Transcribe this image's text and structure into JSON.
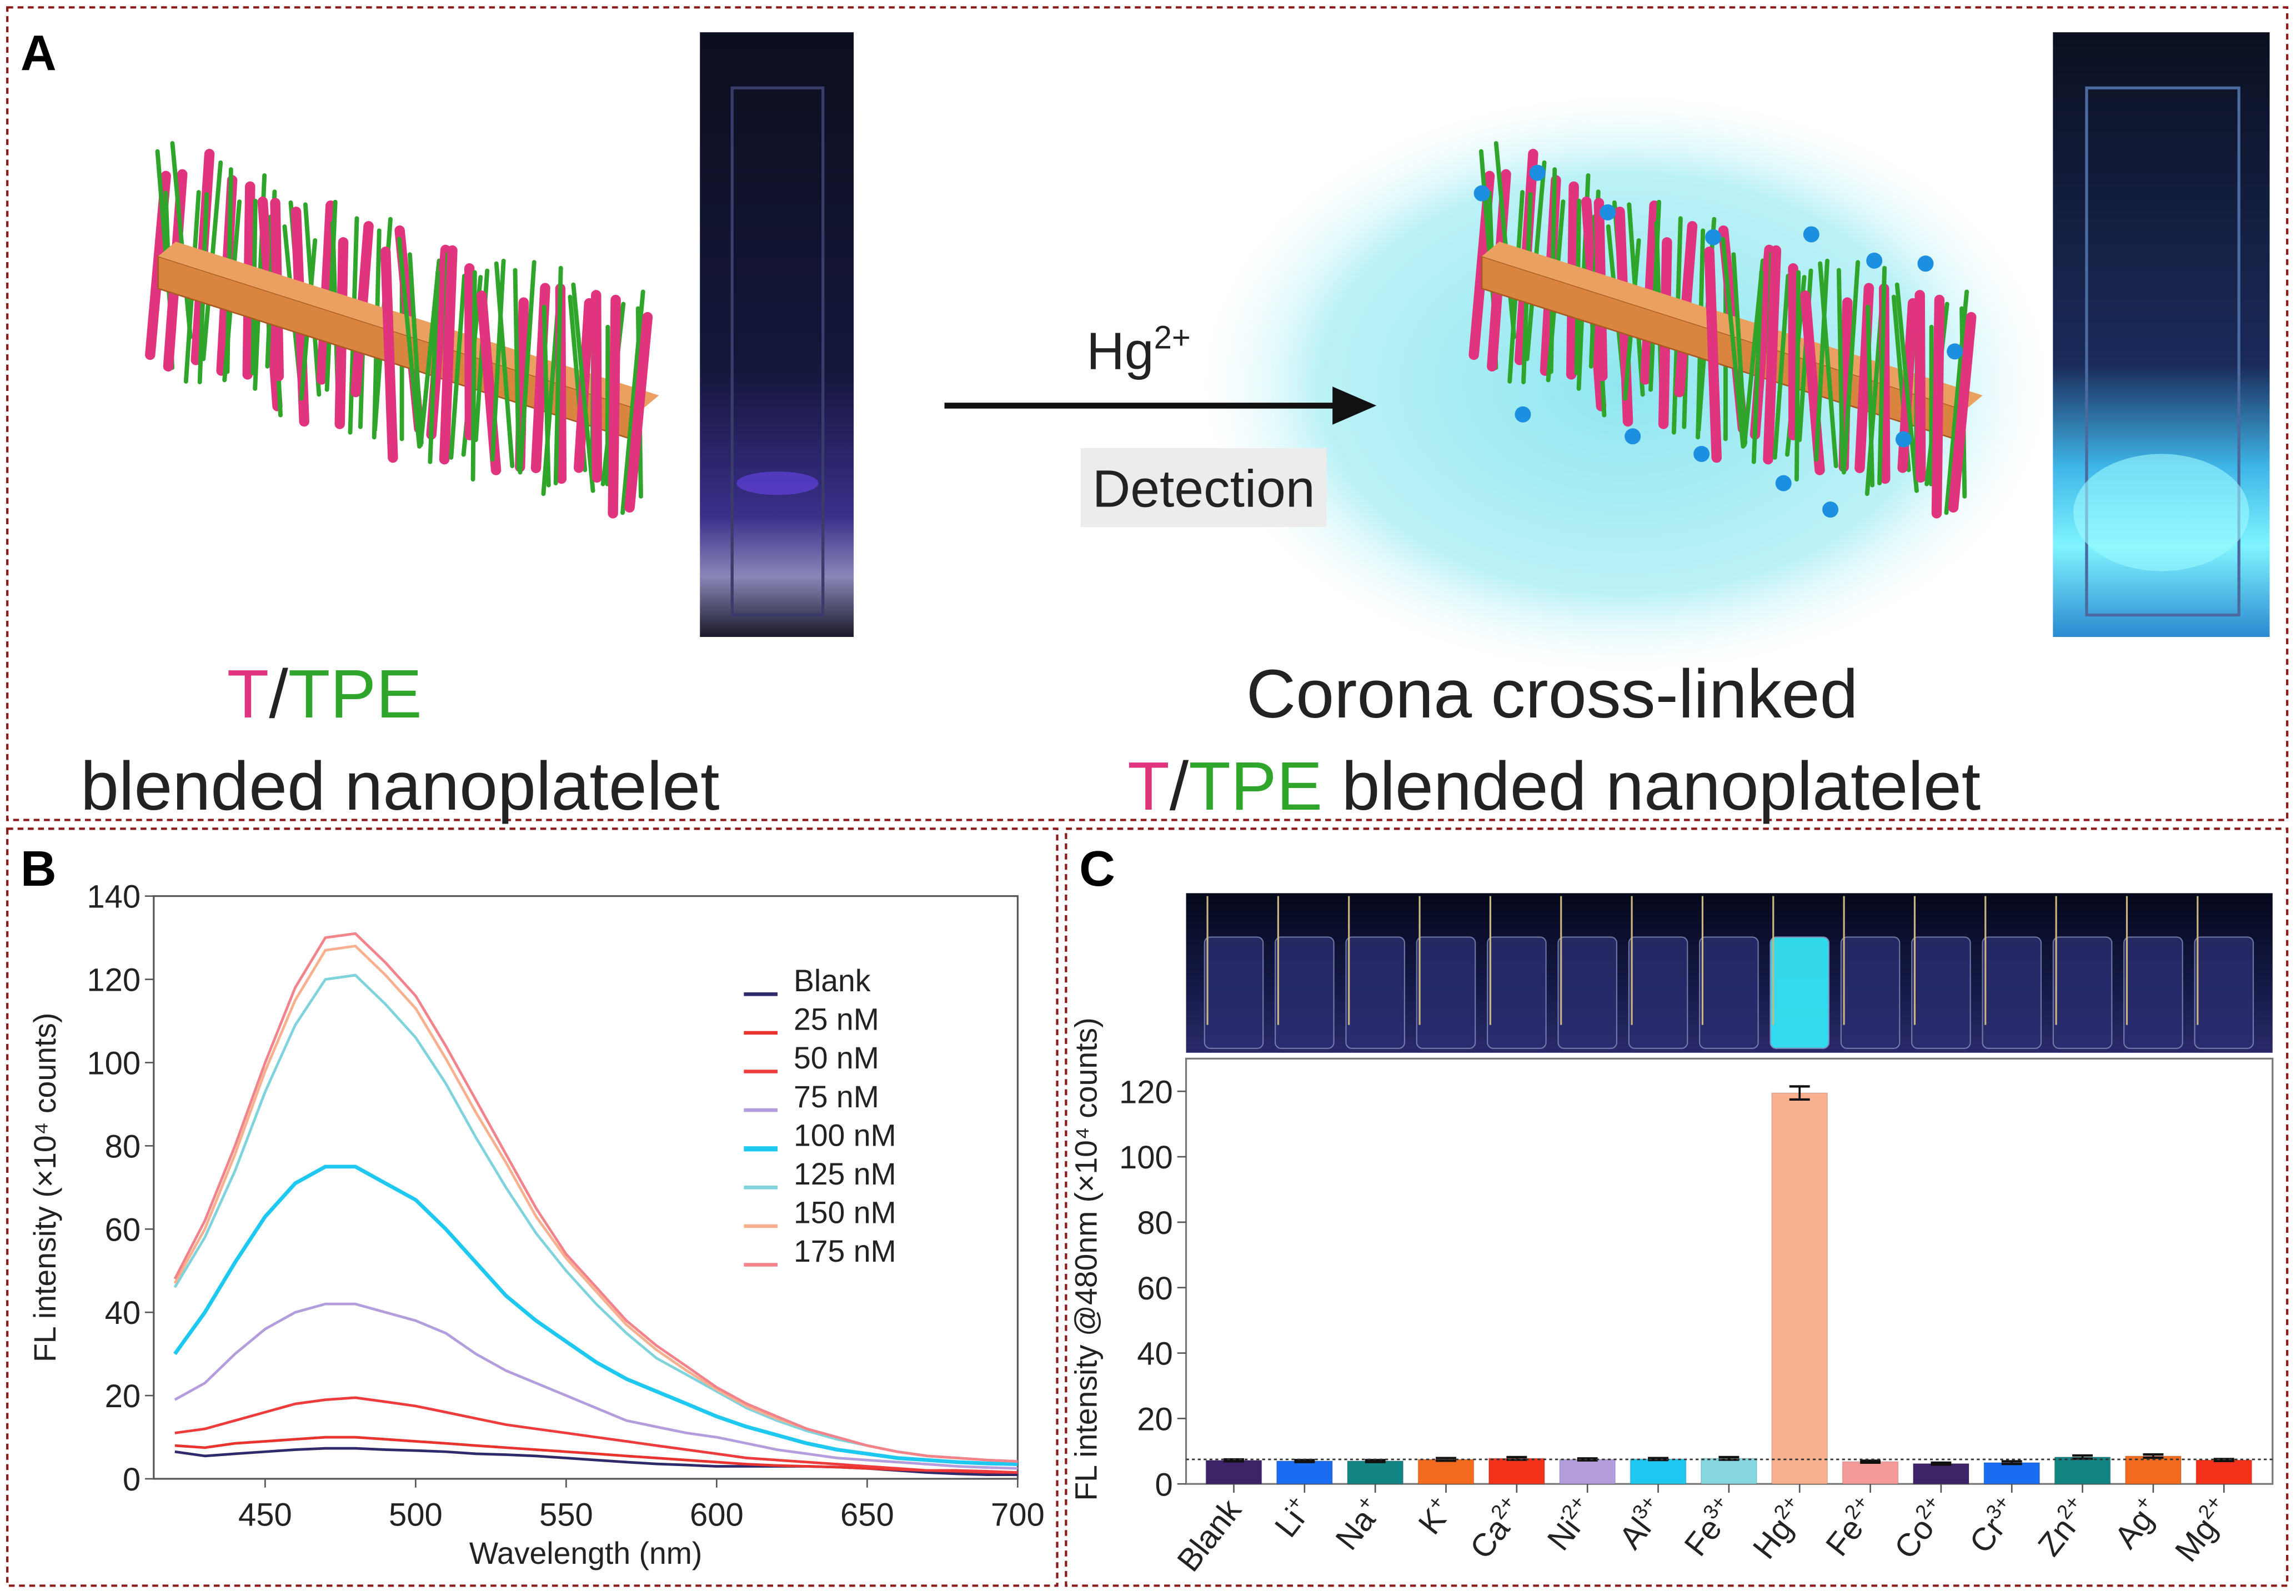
{
  "colors": {
    "border": "#8b1a1a",
    "pink": "#e0357e",
    "green": "#2fa52b",
    "platelet": "#d9843f",
    "glow": "#9beaf2",
    "dot": "#1c8fe0"
  },
  "panel_a": {
    "label": "A",
    "arrow_label": "Hg",
    "arrow_label_sup": "2+",
    "detection": "Detection",
    "left_caption": {
      "t": "T",
      "slash": "/",
      "tpe": "TPE",
      "line2": "blended nanoplatelet"
    },
    "right_caption": {
      "line1": "Corona cross-linked",
      "t": "T",
      "slash": "/",
      "tpe": "TPE",
      "rest": " blended nanoplatelet"
    }
  },
  "chart_data": [
    {
      "panel_label": "B",
      "type": "line",
      "xlabel": "Wavelength (nm)",
      "ylabel": "FL intensity (×10⁴ counts)",
      "xlim": [
        413,
        700
      ],
      "ylim": [
        0,
        140
      ],
      "xticks": [
        450,
        500,
        550,
        600,
        650,
        700
      ],
      "yticks": [
        0,
        20,
        40,
        60,
        80,
        100,
        120,
        140
      ],
      "legend_position": "right",
      "grid": false,
      "x": [
        420,
        430,
        440,
        450,
        460,
        470,
        480,
        490,
        500,
        510,
        520,
        530,
        540,
        550,
        560,
        570,
        580,
        590,
        600,
        610,
        620,
        630,
        640,
        650,
        660,
        670,
        680,
        690,
        700
      ],
      "series": [
        {
          "name": "Blank",
          "color": "#2e2a6b",
          "values": [
            6.5,
            5.5,
            6,
            6.5,
            7,
            7.3,
            7.3,
            7,
            6.8,
            6.5,
            6,
            5.8,
            5.5,
            5,
            4.5,
            4,
            3.6,
            3.3,
            3,
            3,
            3,
            3,
            2.8,
            2.5,
            2,
            1.5,
            1.2,
            1,
            1
          ]
        },
        {
          "name": "25 nM",
          "color": "#e8332e",
          "values": [
            8,
            7.5,
            8.5,
            9,
            9.5,
            10,
            10,
            9.5,
            9,
            8.5,
            8,
            7.5,
            7,
            6.5,
            6,
            5.5,
            5,
            4.5,
            4,
            3.5,
            3.2,
            3,
            2.8,
            2.5,
            2.2,
            2,
            1.8,
            1.6,
            1.5
          ]
        },
        {
          "name": "50 nM",
          "color": "#ee3b3b",
          "values": [
            11,
            12,
            14,
            16,
            18,
            19,
            19.5,
            18.5,
            17.5,
            16,
            14.5,
            13,
            12,
            11,
            10,
            9,
            8,
            7,
            6,
            5,
            4.5,
            4,
            3.5,
            3,
            2.5,
            2,
            2,
            1.8,
            1.5
          ]
        },
        {
          "name": "75 nM",
          "color": "#b49ddc",
          "values": [
            19,
            23,
            30,
            36,
            40,
            42,
            42,
            40,
            38,
            35,
            30,
            26,
            23,
            20,
            17,
            14,
            12.5,
            11,
            10,
            8.5,
            7,
            6,
            5,
            4.5,
            4,
            3.5,
            3,
            2.7,
            2.5
          ]
        },
        {
          "name": "100 nM",
          "color": "#1ec8f0",
          "values": [
            30,
            40,
            52,
            63,
            71,
            75,
            75,
            71,
            67,
            60,
            52,
            44,
            38,
            33,
            28,
            24,
            21,
            18,
            15,
            12.5,
            10.5,
            8.5,
            7,
            6,
            5,
            4.5,
            4,
            3.7,
            3.5
          ]
        },
        {
          "name": "125 nM",
          "color": "#7fd3dc",
          "values": [
            46,
            58,
            74,
            93,
            109,
            120,
            121,
            114,
            106,
            95,
            82,
            70,
            59,
            50,
            42,
            35,
            29,
            25,
            21,
            17,
            14,
            11.5,
            9.5,
            8,
            6.5,
            5.5,
            5,
            4.5,
            4.2
          ]
        },
        {
          "name": "150 nM",
          "color": "#f9b08e",
          "values": [
            47,
            60,
            78,
            98,
            115,
            127,
            128,
            121,
            113,
            101,
            88,
            76,
            63,
            53,
            45,
            37,
            31,
            26,
            21.5,
            17.5,
            14.5,
            12,
            10,
            8,
            6.5,
            5.5,
            5,
            4.5,
            4.2
          ]
        },
        {
          "name": "175 nM",
          "color": "#f2838a",
          "values": [
            48,
            62,
            80,
            100,
            118,
            130,
            131,
            124,
            116,
            104,
            91,
            78,
            65,
            54,
            46,
            38,
            32,
            27,
            22,
            18,
            15,
            12,
            10,
            8,
            6.5,
            5.5,
            5,
            4.5,
            4.2
          ]
        }
      ]
    },
    {
      "panel_label": "C",
      "type": "bar",
      "ylabel": "FL intensity @480nm (×10⁴ counts)",
      "ylim": [
        0,
        130
      ],
      "yticks": [
        0,
        20,
        40,
        60,
        80,
        100,
        120
      ],
      "grid": false,
      "reference_line": 7.5,
      "categories": [
        {
          "base": "Blank",
          "sup": ""
        },
        {
          "base": "Li",
          "sup": "+"
        },
        {
          "base": "Na",
          "sup": "+"
        },
        {
          "base": "K",
          "sup": "+"
        },
        {
          "base": "Ca",
          "sup": "2+"
        },
        {
          "base": "Ni",
          "sup": "2+"
        },
        {
          "base": "Al",
          "sup": "3+"
        },
        {
          "base": "Fe",
          "sup": "3+"
        },
        {
          "base": "Hg",
          "sup": "2+"
        },
        {
          "base": "Fe",
          "sup": "2+"
        },
        {
          "base": "Co",
          "sup": "2+"
        },
        {
          "base": "Cr",
          "sup": "3+"
        },
        {
          "base": "Zn",
          "sup": "2+"
        },
        {
          "base": "Ag",
          "sup": "+"
        },
        {
          "base": "Mg",
          "sup": "2+"
        }
      ],
      "values": [
        7.2,
        7.0,
        7.0,
        7.5,
        7.8,
        7.5,
        7.6,
        7.8,
        119.5,
        6.8,
        6.2,
        6.5,
        8.2,
        8.5,
        7.3
      ],
      "errors": [
        0.3,
        0.3,
        0.3,
        0.4,
        0.4,
        0.3,
        0.3,
        0.4,
        2.0,
        0.3,
        0.3,
        0.4,
        0.5,
        0.5,
        0.3
      ],
      "colors": [
        "#3d2468",
        "#1a6cf0",
        "#138484",
        "#f26b1f",
        "#f4321c",
        "#b49ddc",
        "#1ec8f0",
        "#86d6e0",
        "#f9b08e",
        "#f49a9a",
        "#3d2468",
        "#1a6cf0",
        "#138484",
        "#f26b1f",
        "#f4321c"
      ],
      "highlight_vial": 8
    }
  ]
}
